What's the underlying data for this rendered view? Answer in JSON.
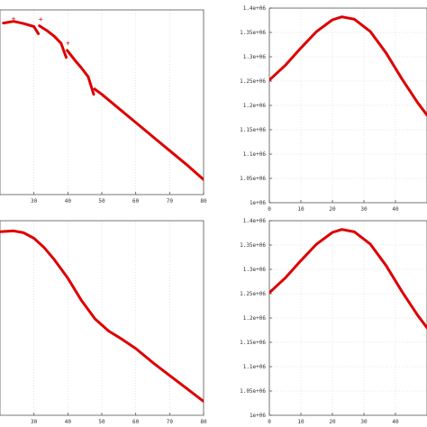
{
  "chart_data": [
    {
      "type": "line",
      "panel": "top-left",
      "xlim": [
        20,
        80
      ],
      "xticks": [
        "30",
        "40",
        "50",
        "60",
        "70",
        "80"
      ],
      "yticks": [],
      "grid": true,
      "series": [
        {
          "color": "#dd0000",
          "segments": [
            {
              "x": [
                21,
                24,
                27,
                30,
                31.3
              ],
              "y": [
                0.975,
                0.985,
                0.972,
                0.955,
                0.915
              ]
            },
            {
              "x": [
                31.6,
                34,
                36,
                38,
                39.5
              ],
              "y": [
                0.96,
                0.93,
                0.9,
                0.86,
                0.78
              ]
            },
            {
              "x": [
                39.8,
                42,
                44,
                46,
                47.6
              ],
              "y": [
                0.82,
                0.765,
                0.72,
                0.67,
                0.57
              ]
            },
            {
              "x": [
                47.9,
                50,
                55,
                60,
                65,
                70,
                75,
                80
              ],
              "y": [
                0.6,
                0.57,
                0.49,
                0.41,
                0.33,
                0.25,
                0.17,
                0.085
              ]
            }
          ]
        }
      ],
      "markers": {
        "x": [
          24,
          32,
          40,
          48
        ],
        "y": [
          1.0,
          0.995,
          0.86,
          0.6
        ],
        "symbol": "+"
      }
    },
    {
      "type": "line",
      "panel": "top-right",
      "xlim": [
        0,
        50
      ],
      "ylim": [
        1000000,
        1400000
      ],
      "xticks": [
        "0",
        "10",
        "20",
        "30",
        "40"
      ],
      "yticks": [
        "1e+06",
        "1.05e+06",
        "1.1e+06",
        "1.15e+06",
        "1.2e+06",
        "1.25e+06",
        "1.3e+06",
        "1.35e+06",
        "1.4e+06"
      ],
      "grid": true,
      "series": [
        {
          "color": "#dd0000",
          "x": [
            0,
            5,
            10,
            15,
            20,
            23,
            27,
            32,
            37,
            42,
            47,
            50
          ],
          "y": [
            1252000,
            1282000,
            1318000,
            1352000,
            1376000,
            1382000,
            1377000,
            1352000,
            1308000,
            1255000,
            1206000,
            1180000
          ]
        }
      ]
    },
    {
      "type": "line",
      "panel": "bottom-left",
      "xlim": [
        20,
        80
      ],
      "xticks": [
        "30",
        "40",
        "50",
        "60",
        "70",
        "80"
      ],
      "yticks": [],
      "grid": true,
      "series": [
        {
          "color": "#dd0000",
          "x": [
            20,
            24,
            27,
            30,
            33,
            36,
            40,
            44,
            48,
            52,
            56,
            60,
            65,
            70,
            75,
            80
          ],
          "y": [
            0.99,
            0.995,
            0.985,
            0.955,
            0.905,
            0.84,
            0.74,
            0.62,
            0.52,
            0.455,
            0.41,
            0.36,
            0.285,
            0.215,
            0.145,
            0.075
          ]
        }
      ]
    },
    {
      "type": "line",
      "panel": "bottom-right",
      "xlim": [
        0,
        50
      ],
      "ylim": [
        1000000,
        1400000
      ],
      "xticks": [
        "0",
        "10",
        "20",
        "30",
        "40"
      ],
      "yticks": [
        "1e+06",
        "1.05e+06",
        "1.1e+06",
        "1.15e+06",
        "1.2e+06",
        "1.25e+06",
        "1.3e+06",
        "1.35e+06",
        "1.4e+06"
      ],
      "grid": true,
      "series": [
        {
          "color": "#dd0000",
          "x": [
            0,
            5,
            10,
            15,
            20,
            23,
            27,
            32,
            37,
            42,
            47,
            50
          ],
          "y": [
            1252000,
            1282000,
            1318000,
            1352000,
            1376000,
            1382000,
            1377000,
            1352000,
            1308000,
            1255000,
            1206000,
            1180000
          ]
        }
      ]
    }
  ]
}
